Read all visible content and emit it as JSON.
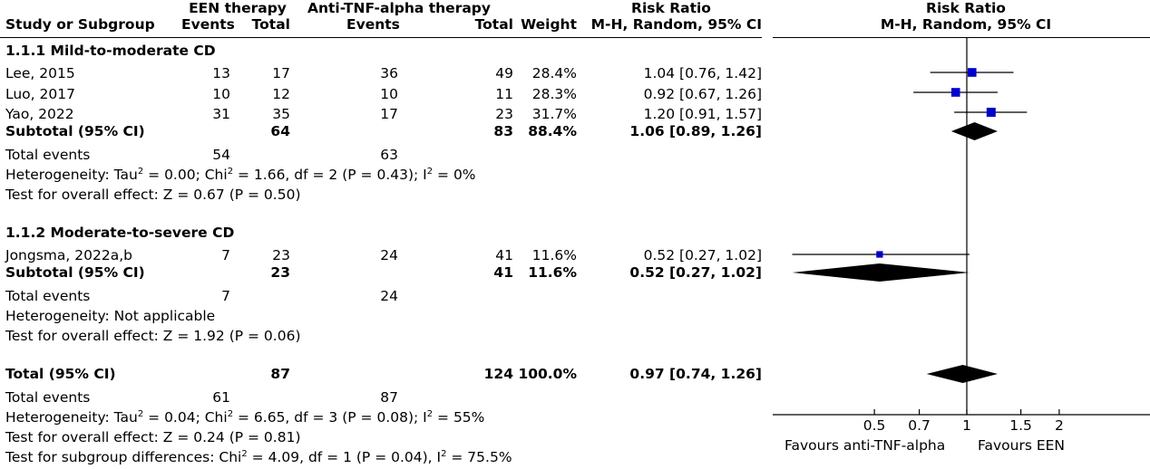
{
  "header": {
    "study_col": "Study or Subgroup",
    "group1": "EEN therapy",
    "group2": "Anti-TNF-alpha therapy",
    "events": "Events",
    "total": "Total",
    "weight": "Weight",
    "rr_title": "Risk Ratio",
    "rr_method": "M-H, Random, 95% CI",
    "plot_title": "Risk Ratio",
    "plot_method": "M-H, Random, 95% CI"
  },
  "subgroups": [
    {
      "title": "1.1.1 Mild-to-moderate CD",
      "studies": [
        {
          "name": "Lee, 2015",
          "e1": "13",
          "t1": "17",
          "e2": "36",
          "t2": "49",
          "weight": "28.4%",
          "ci_text": "1.04 [0.76, 1.42]"
        },
        {
          "name": "Luo, 2017",
          "e1": "10",
          "t1": "12",
          "e2": "10",
          "t2": "11",
          "weight": "28.3%",
          "ci_text": "0.92 [0.67, 1.26]"
        },
        {
          "name": "Yao, 2022",
          "e1": "31",
          "t1": "35",
          "e2": "17",
          "t2": "23",
          "weight": "31.7%",
          "ci_text": "1.20 [0.91, 1.57]"
        }
      ],
      "subtotal": {
        "label": "Subtotal (95% CI)",
        "t1": "64",
        "t2": "83",
        "weight": "88.4%",
        "ci_text": "1.06 [0.89, 1.26]"
      },
      "total_events": {
        "label": "Total events",
        "e1": "54",
        "e2": "63"
      },
      "heterogeneity": {
        "label": "Heterogeneity: Tau",
        "p1": " = 0.00; Chi",
        "p2": " = 1.66, df = 2 (P = 0.43); I",
        "p3": " = 0%",
        "sup": "2"
      },
      "overall": "Test for overall effect: Z = 0.67 (P = 0.50)"
    },
    {
      "title": "1.1.2 Moderate-to-severe CD",
      "studies": [
        {
          "name": "Jongsma, 2022a,b",
          "e1": "7",
          "t1": "23",
          "e2": "24",
          "t2": "41",
          "weight": "11.6%",
          "ci_text": "0.52 [0.27, 1.02]"
        }
      ],
      "subtotal": {
        "label": "Subtotal (95% CI)",
        "t1": "23",
        "t2": "41",
        "weight": "11.6%",
        "ci_text": "0.52 [0.27, 1.02]"
      },
      "total_events": {
        "label": "Total events",
        "e1": "7",
        "e2": "24"
      },
      "heterogeneity": {
        "text": "Heterogeneity: Not applicable"
      },
      "overall": "Test for overall effect: Z = 1.92 (P = 0.06)"
    }
  ],
  "total": {
    "label": "Total (95% CI)",
    "t1": "87",
    "t2": "124",
    "weight": "100.0%",
    "ci_text": "0.97 [0.74, 1.26]",
    "total_events": {
      "label": "Total events",
      "e1": "61",
      "e2": "87"
    },
    "heterogeneity": {
      "label": "Heterogeneity: Tau",
      "p1": " = 0.04; Chi",
      "p2": " = 6.65, df = 3 (P = 0.08); I",
      "p3": " = 55%",
      "sup": "2"
    },
    "overall": "Test for overall effect: Z = 0.24 (P = 0.81)",
    "subgroup_diff": {
      "p1": "Test for subgroup differences: Chi",
      "p2": " = 4.09, df = 1 (P = 0.04), I",
      "p3": " = 75.5%",
      "sup": "2"
    }
  },
  "axis": {
    "favours_left": "Favours anti-TNF-alpha",
    "favours_right": "Favours EEN"
  },
  "colors": {
    "marker": "#0000cc",
    "diamond": "#000000",
    "line": "#000000"
  },
  "chart_data": {
    "type": "forest",
    "title": "Risk Ratio",
    "subtitle": "M-H, Random, 95% CI",
    "scale": "log",
    "xlim": [
      0.4,
      2.5
    ],
    "xticks": [
      0.5,
      0.7,
      1,
      1.5,
      2
    ],
    "xtick_labels": [
      "0.5",
      "0.7",
      "1",
      "1.5",
      "2"
    ],
    "reference_line": 1,
    "studies": [
      {
        "name": "Lee, 2015",
        "rr": 1.04,
        "lo": 0.76,
        "hi": 1.42,
        "weight": 28.4
      },
      {
        "name": "Luo, 2017",
        "rr": 0.92,
        "lo": 0.67,
        "hi": 1.26,
        "weight": 28.3
      },
      {
        "name": "Yao, 2022",
        "rr": 1.2,
        "lo": 0.91,
        "hi": 1.57,
        "weight": 31.7
      },
      {
        "name": "Jongsma, 2022a,b",
        "rr": 0.52,
        "lo": 0.27,
        "hi": 1.02,
        "weight": 11.6
      }
    ],
    "pooled": [
      {
        "name": "Subtotal 1.1.1",
        "rr": 1.06,
        "lo": 0.89,
        "hi": 1.26
      },
      {
        "name": "Subtotal 1.1.2",
        "rr": 0.52,
        "lo": 0.27,
        "hi": 1.02
      },
      {
        "name": "Total",
        "rr": 0.97,
        "lo": 0.74,
        "hi": 1.26
      }
    ]
  }
}
